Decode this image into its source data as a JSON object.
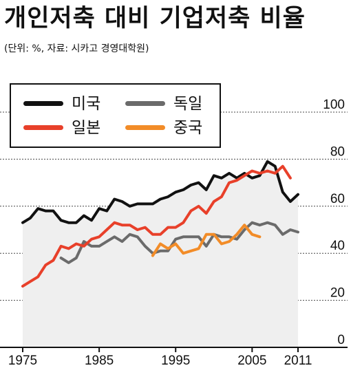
{
  "header": {
    "title": "개인저축 대비 기업저축 비율",
    "subtitle": "(단위: %, 자료: 시카고 경영대학원)"
  },
  "colors": {
    "usa": "#111111",
    "japan": "#e8402a",
    "germany": "#6b6b6b",
    "china": "#f28c28",
    "shade": "#efefef",
    "grid": "#444444"
  },
  "chart_data": {
    "type": "line",
    "title": "개인저축 대비 기업저축 비율",
    "subtitle": "(단위: %, 자료: 시카고 경영대학원)",
    "x_ticks": [
      1975,
      1985,
      1995,
      2005,
      2011
    ],
    "y_ticks": [
      0,
      20,
      40,
      60,
      80,
      100
    ],
    "xlim": [
      1975,
      2011
    ],
    "ylim": [
      0,
      100
    ],
    "grid": "horizontal dashed",
    "legend_position": "top-left",
    "shaded_series": "미국",
    "series": [
      {
        "name": "미국",
        "color": "#111111",
        "x": [
          1975,
          1976,
          1977,
          1978,
          1979,
          1980,
          1981,
          1982,
          1983,
          1984,
          1985,
          1986,
          1987,
          1988,
          1989,
          1990,
          1991,
          1992,
          1993,
          1994,
          1995,
          1996,
          1997,
          1998,
          1999,
          2000,
          2001,
          2002,
          2003,
          2004,
          2005,
          2006,
          2007,
          2008,
          2009,
          2010,
          2011
        ],
        "values": [
          53,
          55,
          59,
          58,
          58,
          54,
          53,
          53,
          56,
          54,
          59,
          58,
          63,
          62,
          60,
          61,
          61,
          61,
          63,
          64,
          66,
          67,
          69,
          70,
          67,
          73,
          72,
          74,
          72,
          74,
          72,
          73,
          79,
          77,
          66,
          62,
          65
        ]
      },
      {
        "name": "일본",
        "color": "#e8402a",
        "x": [
          1975,
          1976,
          1977,
          1978,
          1979,
          1980,
          1981,
          1982,
          1983,
          1984,
          1985,
          1986,
          1987,
          1988,
          1989,
          1990,
          1991,
          1992,
          1993,
          1994,
          1995,
          1996,
          1997,
          1998,
          1999,
          2000,
          2001,
          2002,
          2003,
          2004,
          2005,
          2006,
          2007,
          2008,
          2009,
          2010
        ],
        "values": [
          26,
          28,
          30,
          35,
          37,
          43,
          42,
          44,
          43,
          46,
          47,
          50,
          53,
          52,
          52,
          50,
          51,
          48,
          48,
          51,
          51,
          53,
          58,
          60,
          57,
          62,
          64,
          70,
          71,
          73,
          75,
          74,
          75,
          74,
          77,
          72
        ]
      },
      {
        "name": "독일",
        "color": "#6b6b6b",
        "x": [
          1980,
          1981,
          1982,
          1983,
          1984,
          1985,
          1986,
          1987,
          1988,
          1989,
          1990,
          1991,
          1992,
          1993,
          1994,
          1995,
          1996,
          1997,
          1998,
          1999,
          2000,
          2001,
          2002,
          2003,
          2004,
          2005,
          2006,
          2007,
          2008,
          2009,
          2010,
          2011
        ],
        "values": [
          38,
          36,
          38,
          45,
          43,
          43,
          45,
          47,
          45,
          48,
          47,
          43,
          40,
          41,
          41,
          46,
          47,
          47,
          47,
          43,
          48,
          47,
          47,
          46,
          50,
          53,
          52,
          53,
          52,
          48,
          50,
          49
        ]
      },
      {
        "name": "중국",
        "color": "#f28c28",
        "x": [
          1992,
          1993,
          1994,
          1995,
          1996,
          1997,
          1998,
          1999,
          2000,
          2001,
          2002,
          2003,
          2004,
          2005,
          2006
        ],
        "values": [
          39,
          44,
          42,
          44,
          40,
          41,
          42,
          48,
          48,
          44,
          45,
          48,
          52,
          48,
          47
        ]
      }
    ]
  }
}
